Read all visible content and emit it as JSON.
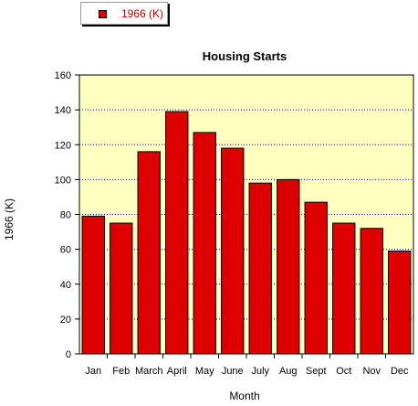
{
  "chart_data": {
    "type": "bar",
    "title": "Housing Starts",
    "xlabel": "Month",
    "ylabel": "1966 (K)",
    "categories": [
      "Jan",
      "Feb",
      "March",
      "April",
      "May",
      "June",
      "July",
      "Aug",
      "Sept",
      "Oct",
      "Nov",
      "Dec"
    ],
    "series": [
      {
        "name": "1966 (K)",
        "values": [
          79,
          75,
          116,
          139,
          127,
          118,
          98,
          100,
          87,
          75,
          72,
          59
        ]
      }
    ],
    "ylim": [
      0,
      160
    ],
    "yticks": [
      0,
      20,
      40,
      60,
      80,
      100,
      120,
      140,
      160
    ],
    "grid": true,
    "legend": "top-left",
    "colors": {
      "bar": "#dd0000",
      "plot_background": "#ffffc0",
      "grid": "#0000cc"
    }
  }
}
